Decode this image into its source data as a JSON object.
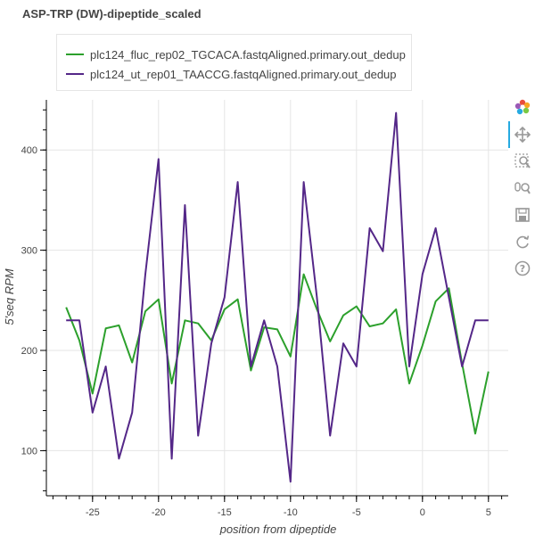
{
  "chart_data": {
    "type": "line",
    "title": "ASP-TRP (DW)-dipeptide_scaled",
    "xlabel": "position from dipeptide",
    "ylabel": "5'seq RPM",
    "xlim": [
      -28.5,
      6.5
    ],
    "ylim": [
      55,
      450
    ],
    "xticks": [
      -25,
      -20,
      -15,
      -10,
      -5,
      0,
      5
    ],
    "yticks": [
      100,
      200,
      300,
      400
    ],
    "grid": true,
    "legend": "top-left",
    "x": [
      -27,
      -26,
      -25,
      -24,
      -23,
      -22,
      -21,
      -20,
      -19,
      -18,
      -17,
      -16,
      -15,
      -14,
      -13,
      -12,
      -11,
      -10,
      -9,
      -8,
      -7,
      -6,
      -5,
      -4,
      -3,
      -2,
      -1,
      0,
      1,
      2,
      3,
      4,
      5
    ],
    "series": [
      {
        "name": "plc124_fluc_rep02_TGCACA.fastqAligned.primary.out_dedup",
        "color": "#2ca02c",
        "values": [
          243,
          210,
          157,
          222,
          225,
          188,
          239,
          251,
          167,
          230,
          227,
          210,
          241,
          251,
          180,
          223,
          221,
          194,
          276,
          241,
          209,
          235,
          244,
          224,
          227,
          241,
          167,
          205,
          249,
          262,
          187,
          117,
          179
        ]
      },
      {
        "name": "plc124_ut_rep01_TAACCG.fastqAligned.primary.out_dedup",
        "color": "#542788",
        "values": [
          230,
          230,
          138,
          184,
          92,
          138,
          276,
          391,
          92,
          345,
          115,
          207,
          253,
          368,
          184,
          230,
          184,
          69,
          368,
          253,
          115,
          207,
          184,
          322,
          299,
          437,
          184,
          276,
          322,
          253,
          184,
          230,
          230
        ]
      }
    ]
  },
  "toolbar": {
    "tools": [
      "bokeh-logo-icon",
      "pan-icon",
      "box-zoom-icon",
      "wheel-zoom-icon",
      "save-icon",
      "reset-icon",
      "help-icon"
    ]
  }
}
